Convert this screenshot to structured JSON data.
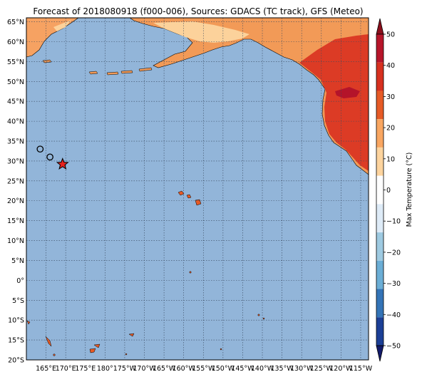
{
  "title": "Forecast of 2018080918 (f000-006), Sources: GDACS (TC track), GFS (Meteo)",
  "map": {
    "lat_labels": [
      "65°N",
      "60°N",
      "55°N",
      "50°N",
      "45°N",
      "40°N",
      "35°N",
      "30°N",
      "25°N",
      "20°N",
      "15°N",
      "10°N",
      "5°N",
      "0°",
      "5°S",
      "10°S",
      "15°S",
      "20°S"
    ],
    "lon_labels": [
      "165°E",
      "170°E",
      "175°E",
      "180°",
      "175°W",
      "170°W",
      "165°W",
      "160°W",
      "155°W",
      "150°W",
      "145°W",
      "140°W",
      "135°W",
      "130°W",
      "125°W",
      "120°W",
      "115°W"
    ],
    "ocean_color": "#92b5d9",
    "gridlines": true,
    "track": {
      "past_positions": [
        {
          "lon": 163.5,
          "lat": 33.0
        },
        {
          "lon": 166.0,
          "lat": 31.0
        }
      ],
      "current_position": {
        "lon": 169.2,
        "lat": 29.2
      },
      "past_marker": "open-circle",
      "current_marker": "red-star",
      "current_color": "#e8211d"
    }
  },
  "colorbar": {
    "label": "Max Temperature (°C)",
    "ticks": [
      "50",
      "40",
      "30",
      "20",
      "10",
      "0",
      "−10",
      "−20",
      "−30",
      "−40",
      "−50"
    ],
    "colors": [
      "#8b0f1c",
      "#b7152a",
      "#d7301f",
      "#e65a26",
      "#f9a661",
      "#fdd49e",
      "#ffffff",
      "#deebf7",
      "#9ecae1",
      "#6baed6",
      "#3474b7",
      "#1c3f96",
      "#131b6b"
    ],
    "extend": "both"
  }
}
